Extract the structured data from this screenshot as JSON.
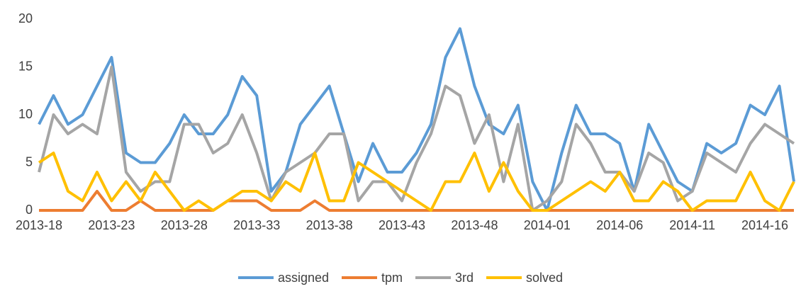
{
  "chart_data": {
    "type": "line",
    "categories": [
      "2013-18",
      null,
      null,
      null,
      null,
      "2013-23",
      null,
      null,
      null,
      null,
      "2013-28",
      null,
      null,
      null,
      null,
      "2013-33",
      null,
      null,
      null,
      null,
      "2013-38",
      null,
      null,
      null,
      null,
      "2013-43",
      null,
      null,
      null,
      null,
      "2013-48",
      null,
      null,
      null,
      null,
      "2014-01",
      null,
      null,
      null,
      null,
      "2014-06",
      null,
      null,
      null,
      null,
      "2014-11",
      null,
      null,
      null,
      null,
      "2014-16",
      null,
      null
    ],
    "series": [
      {
        "name": "assigned",
        "color": "#5b9bd5",
        "values": [
          9,
          12,
          9,
          10,
          13,
          16,
          6,
          5,
          5,
          7,
          10,
          8,
          8,
          10,
          14,
          12,
          2,
          4,
          9,
          11,
          13,
          8,
          3,
          7,
          4,
          4,
          6,
          9,
          16,
          19,
          13,
          9,
          8,
          11,
          3,
          0,
          6,
          11,
          8,
          8,
          7,
          2,
          9,
          6,
          3,
          2,
          7,
          6,
          7,
          11,
          10,
          13,
          3
        ]
      },
      {
        "name": "tpm",
        "color": "#ed7d31",
        "values": [
          0,
          0,
          0,
          0,
          2,
          0,
          0,
          1,
          0,
          0,
          0,
          0,
          0,
          1,
          1,
          1,
          0,
          0,
          0,
          1,
          0,
          0,
          0,
          0,
          0,
          0,
          0,
          0,
          0,
          0,
          0,
          0,
          0,
          0,
          0,
          0,
          0,
          0,
          0,
          0,
          0,
          0,
          0,
          0,
          0,
          0,
          0,
          0,
          0,
          0,
          0,
          0,
          0
        ]
      },
      {
        "name": "3rd",
        "color": "#a5a5a5",
        "values": [
          4,
          10,
          8,
          9,
          8,
          15,
          4,
          2,
          3,
          3,
          9,
          9,
          6,
          7,
          10,
          6,
          1,
          4,
          5,
          6,
          8,
          8,
          1,
          3,
          3,
          1,
          5,
          8,
          13,
          12,
          7,
          10,
          3,
          9,
          0,
          1,
          3,
          9,
          7,
          4,
          4,
          2,
          6,
          5,
          1,
          2,
          6,
          5,
          4,
          7,
          9,
          8,
          7
        ]
      },
      {
        "name": "solved",
        "color": "#ffc000",
        "values": [
          5,
          6,
          2,
          1,
          4,
          1,
          3,
          1,
          4,
          2,
          0,
          1,
          0,
          1,
          2,
          2,
          1,
          3,
          2,
          6,
          1,
          1,
          5,
          4,
          3,
          2,
          1,
          0,
          3,
          3,
          6,
          2,
          5,
          2,
          0,
          0,
          1,
          2,
          3,
          2,
          4,
          1,
          1,
          3,
          2,
          0,
          1,
          1,
          1,
          4,
          1,
          0,
          3
        ]
      }
    ],
    "ylim": [
      0,
      20
    ],
    "yticks": [
      0,
      5,
      10,
      15,
      20
    ],
    "grid": false,
    "legend": "bottom"
  }
}
